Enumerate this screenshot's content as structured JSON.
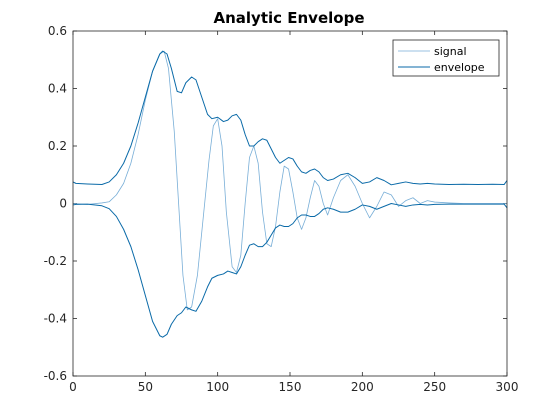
{
  "chart_data": {
    "type": "line",
    "title": "Analytic Envelope",
    "xlabel": "",
    "ylabel": "",
    "xlim": [
      0,
      300
    ],
    "ylim": [
      -0.6,
      0.6
    ],
    "xticks": [
      0,
      50,
      100,
      150,
      200,
      250,
      300
    ],
    "yticks": [
      -0.6,
      -0.4,
      -0.2,
      0,
      0.2,
      0.4,
      0.6
    ],
    "xtick_labels": [
      "0",
      "50",
      "100",
      "150",
      "200",
      "250",
      "300"
    ],
    "ytick_labels": [
      "-0.6",
      "-0.4",
      "-0.2",
      "0",
      "0.2",
      "0.4",
      "0.6"
    ],
    "grid": false,
    "legend_position": "top-right",
    "series": [
      {
        "name": "signal",
        "color": "#78aed7",
        "points": [
          [
            0,
            0
          ],
          [
            10,
            -0.003
          ],
          [
            20,
            0.002
          ],
          [
            25,
            0.006
          ],
          [
            30,
            0.03
          ],
          [
            35,
            0.07
          ],
          [
            40,
            0.14
          ],
          [
            45,
            0.24
          ],
          [
            50,
            0.36
          ],
          [
            55,
            0.46
          ],
          [
            60,
            0.52
          ],
          [
            63,
            0.53
          ],
          [
            66,
            0.47
          ],
          [
            70,
            0.25
          ],
          [
            73,
            0.0
          ],
          [
            76,
            -0.25
          ],
          [
            79,
            -0.37
          ],
          [
            82,
            -0.36
          ],
          [
            86,
            -0.25
          ],
          [
            90,
            -0.05
          ],
          [
            94,
            0.15
          ],
          [
            97,
            0.27
          ],
          [
            100,
            0.295
          ],
          [
            103,
            0.2
          ],
          [
            106,
            -0.03
          ],
          [
            110,
            -0.22
          ],
          [
            113,
            -0.24
          ],
          [
            116,
            -0.18
          ],
          [
            119,
            0.0
          ],
          [
            122,
            0.16
          ],
          [
            125,
            0.2
          ],
          [
            128,
            0.14
          ],
          [
            131,
            -0.03
          ],
          [
            134,
            -0.14
          ],
          [
            137,
            -0.15
          ],
          [
            140,
            -0.08
          ],
          [
            143,
            0.04
          ],
          [
            146,
            0.13
          ],
          [
            149,
            0.12
          ],
          [
            152,
            0.04
          ],
          [
            155,
            -0.05
          ],
          [
            158,
            -0.09
          ],
          [
            161,
            -0.05
          ],
          [
            164,
            0.02
          ],
          [
            167,
            0.08
          ],
          [
            170,
            0.06
          ],
          [
            173,
            0.0
          ],
          [
            176,
            -0.04
          ],
          [
            180,
            0.02
          ],
          [
            185,
            0.08
          ],
          [
            190,
            0.1
          ],
          [
            195,
            0.06
          ],
          [
            200,
            0.0
          ],
          [
            205,
            -0.05
          ],
          [
            210,
            -0.01
          ],
          [
            215,
            0.04
          ],
          [
            220,
            0.03
          ],
          [
            225,
            -0.01
          ],
          [
            230,
            0.01
          ],
          [
            235,
            0.02
          ],
          [
            240,
            0.0
          ],
          [
            245,
            0.01
          ],
          [
            250,
            0.005
          ],
          [
            260,
            0.002
          ],
          [
            270,
            0
          ],
          [
            280,
            0
          ],
          [
            290,
            0
          ],
          [
            300,
            0
          ]
        ]
      },
      {
        "name": "envelope",
        "color": "#0a6aa8",
        "upper": [
          [
            0,
            0.075
          ],
          [
            2,
            0.07
          ],
          [
            10,
            0.068
          ],
          [
            20,
            0.066
          ],
          [
            25,
            0.075
          ],
          [
            30,
            0.1
          ],
          [
            35,
            0.14
          ],
          [
            40,
            0.2
          ],
          [
            45,
            0.28
          ],
          [
            50,
            0.37
          ],
          [
            55,
            0.46
          ],
          [
            60,
            0.52
          ],
          [
            62,
            0.53
          ],
          [
            65,
            0.52
          ],
          [
            68,
            0.47
          ],
          [
            72,
            0.39
          ],
          [
            75,
            0.385
          ],
          [
            78,
            0.42
          ],
          [
            82,
            0.44
          ],
          [
            85,
            0.43
          ],
          [
            89,
            0.37
          ],
          [
            93,
            0.31
          ],
          [
            96,
            0.295
          ],
          [
            100,
            0.3
          ],
          [
            104,
            0.285
          ],
          [
            107,
            0.29
          ],
          [
            110,
            0.305
          ],
          [
            113,
            0.31
          ],
          [
            116,
            0.29
          ],
          [
            119,
            0.24
          ],
          [
            122,
            0.2
          ],
          [
            125,
            0.2
          ],
          [
            128,
            0.215
          ],
          [
            131,
            0.225
          ],
          [
            134,
            0.22
          ],
          [
            137,
            0.19
          ],
          [
            140,
            0.16
          ],
          [
            143,
            0.14
          ],
          [
            146,
            0.15
          ],
          [
            149,
            0.16
          ],
          [
            152,
            0.155
          ],
          [
            155,
            0.13
          ],
          [
            158,
            0.11
          ],
          [
            161,
            0.105
          ],
          [
            164,
            0.115
          ],
          [
            167,
            0.12
          ],
          [
            170,
            0.11
          ],
          [
            173,
            0.09
          ],
          [
            176,
            0.08
          ],
          [
            180,
            0.085
          ],
          [
            185,
            0.1
          ],
          [
            190,
            0.105
          ],
          [
            195,
            0.09
          ],
          [
            200,
            0.07
          ],
          [
            205,
            0.075
          ],
          [
            210,
            0.09
          ],
          [
            215,
            0.08
          ],
          [
            220,
            0.065
          ],
          [
            225,
            0.07
          ],
          [
            230,
            0.075
          ],
          [
            235,
            0.07
          ],
          [
            240,
            0.068
          ],
          [
            245,
            0.07
          ],
          [
            250,
            0.068
          ],
          [
            260,
            0.066
          ],
          [
            270,
            0.067
          ],
          [
            280,
            0.066
          ],
          [
            290,
            0.067
          ],
          [
            298,
            0.066
          ],
          [
            300,
            0.08
          ]
        ],
        "lower": [
          [
            0,
            -0.005
          ],
          [
            2,
            -0.003
          ],
          [
            10,
            -0.002
          ],
          [
            20,
            -0.008
          ],
          [
            25,
            -0.018
          ],
          [
            30,
            -0.045
          ],
          [
            35,
            -0.09
          ],
          [
            40,
            -0.15
          ],
          [
            45,
            -0.23
          ],
          [
            50,
            -0.32
          ],
          [
            55,
            -0.41
          ],
          [
            60,
            -0.46
          ],
          [
            62,
            -0.465
          ],
          [
            65,
            -0.455
          ],
          [
            68,
            -0.42
          ],
          [
            72,
            -0.39
          ],
          [
            75,
            -0.38
          ],
          [
            78,
            -0.36
          ],
          [
            82,
            -0.37
          ],
          [
            85,
            -0.375
          ],
          [
            89,
            -0.34
          ],
          [
            93,
            -0.29
          ],
          [
            96,
            -0.26
          ],
          [
            100,
            -0.25
          ],
          [
            104,
            -0.245
          ],
          [
            107,
            -0.235
          ],
          [
            110,
            -0.24
          ],
          [
            113,
            -0.245
          ],
          [
            116,
            -0.22
          ],
          [
            119,
            -0.18
          ],
          [
            122,
            -0.145
          ],
          [
            125,
            -0.14
          ],
          [
            128,
            -0.15
          ],
          [
            131,
            -0.15
          ],
          [
            134,
            -0.135
          ],
          [
            137,
            -0.11
          ],
          [
            140,
            -0.085
          ],
          [
            143,
            -0.075
          ],
          [
            146,
            -0.08
          ],
          [
            149,
            -0.08
          ],
          [
            152,
            -0.07
          ],
          [
            155,
            -0.05
          ],
          [
            158,
            -0.04
          ],
          [
            161,
            -0.04
          ],
          [
            164,
            -0.045
          ],
          [
            167,
            -0.045
          ],
          [
            170,
            -0.035
          ],
          [
            173,
            -0.02
          ],
          [
            176,
            -0.015
          ],
          [
            180,
            -0.02
          ],
          [
            185,
            -0.03
          ],
          [
            190,
            -0.03
          ],
          [
            195,
            -0.02
          ],
          [
            200,
            -0.005
          ],
          [
            205,
            -0.01
          ],
          [
            210,
            -0.02
          ],
          [
            215,
            -0.01
          ],
          [
            220,
            0.0
          ],
          [
            225,
            -0.005
          ],
          [
            230,
            -0.01
          ],
          [
            235,
            -0.005
          ],
          [
            240,
            -0.003
          ],
          [
            245,
            -0.005
          ],
          [
            250,
            -0.003
          ],
          [
            260,
            -0.002
          ],
          [
            270,
            -0.002
          ],
          [
            280,
            -0.002
          ],
          [
            290,
            -0.002
          ],
          [
            298,
            -0.002
          ],
          [
            300,
            -0.015
          ]
        ]
      }
    ]
  }
}
